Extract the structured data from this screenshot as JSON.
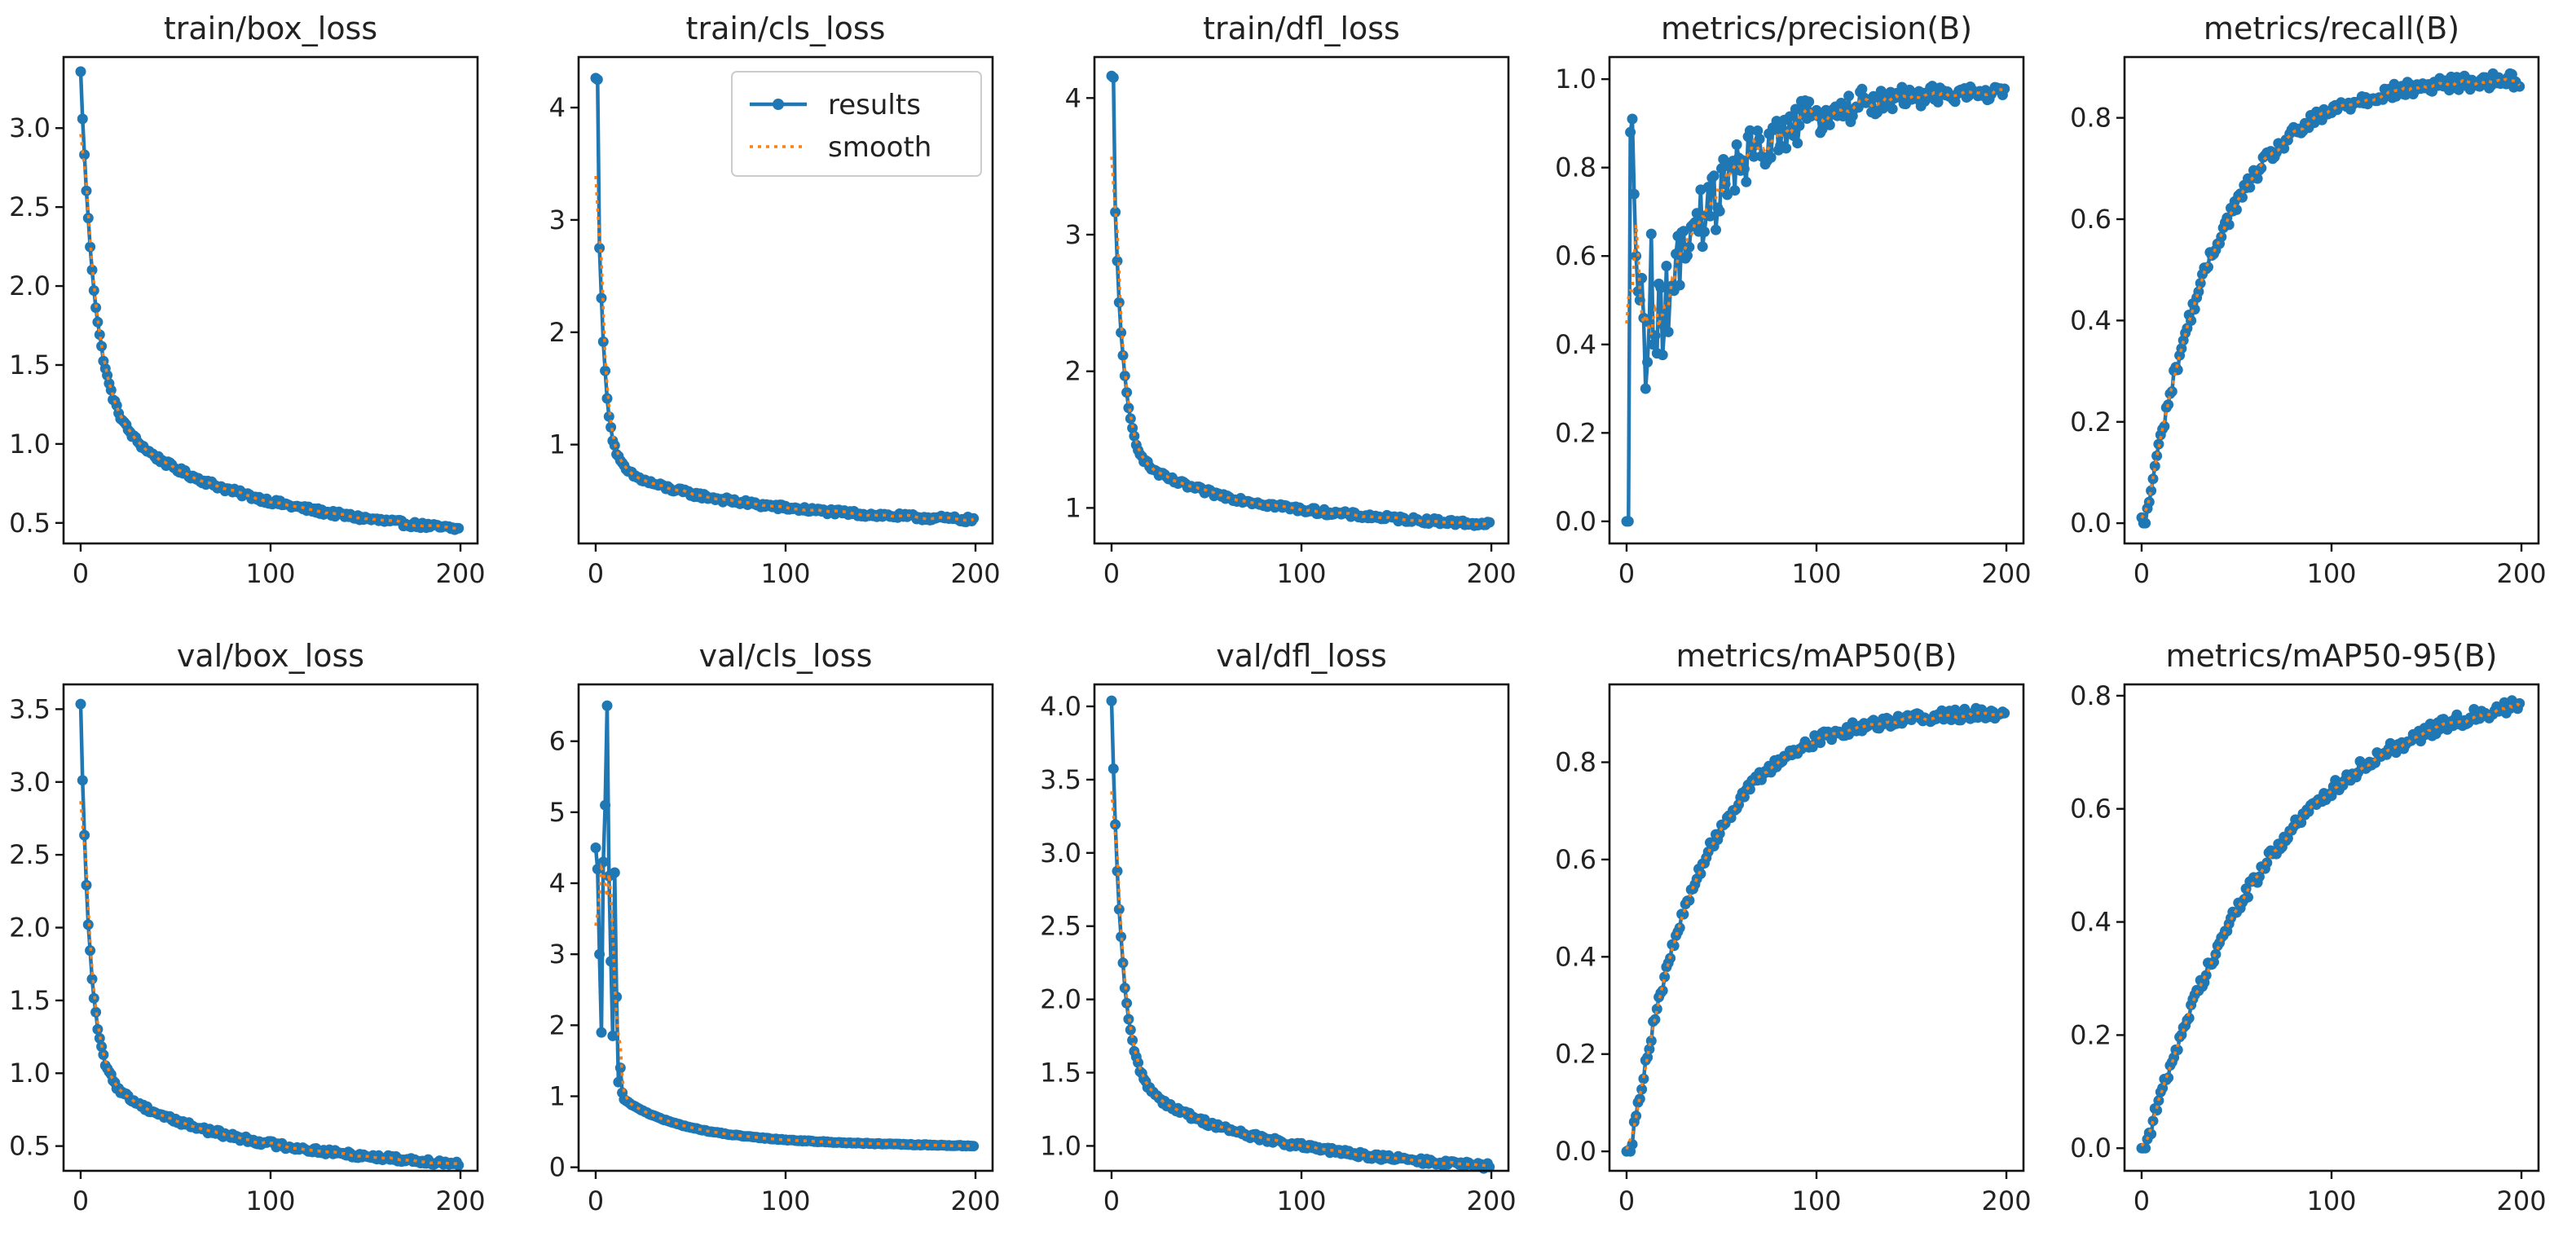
{
  "figure": {
    "x_ticks": [
      0,
      100,
      200
    ],
    "result_color": "#1f77b4",
    "smooth_color": "#ff7f0e"
  },
  "legend": {
    "results_label": "results",
    "smooth_label": "smooth"
  },
  "chart_data": [
    {
      "type": "line",
      "title": "train/box_loss",
      "xlim": [
        -9,
        209
      ],
      "ylim": [
        0.37,
        3.45
      ],
      "yticks": [
        0.5,
        1.0,
        1.5,
        2.0,
        2.5,
        3.0
      ],
      "ytick_labels": [
        "0.5",
        "1.0",
        "1.5",
        "2.0",
        "2.5",
        "3.0"
      ],
      "curve": {
        "kind": "decay",
        "start": 3.35,
        "end": 0.46,
        "k": 3.2,
        "w": 0.62,
        "tau": 7
      },
      "series": [
        {
          "name": "results",
          "x_range": [
            0,
            200
          ],
          "points": 200
        },
        {
          "name": "smooth",
          "style": "dotted"
        }
      ]
    },
    {
      "type": "line",
      "title": "train/cls_loss",
      "xlim": [
        -9,
        209
      ],
      "ylim": [
        0.12,
        4.45
      ],
      "yticks": [
        1,
        2,
        3,
        4
      ],
      "ytick_labels": [
        "1",
        "2",
        "3",
        "4"
      ],
      "curve": {
        "kind": "decay",
        "start": 4.25,
        "end": 0.33,
        "k": 3.2,
        "w": 0.82,
        "tau": 3.5,
        "spike": {
          "x": 1,
          "y": 4.25
        }
      },
      "series": [
        {
          "name": "results",
          "x_range": [
            0,
            200
          ],
          "points": 200
        },
        {
          "name": "smooth",
          "style": "dotted"
        }
      ]
    },
    {
      "type": "line",
      "title": "train/dfl_loss",
      "xlim": [
        -9,
        209
      ],
      "ylim": [
        0.74,
        4.3
      ],
      "yticks": [
        1,
        2,
        3,
        4
      ],
      "ytick_labels": [
        "1",
        "2",
        "3",
        "4"
      ],
      "curve": {
        "kind": "decay",
        "start": 4.15,
        "end": 0.88,
        "k": 3.3,
        "w": 0.78,
        "tau": 4.5,
        "spike": {
          "x": 1,
          "y": 4.15
        }
      },
      "series": [
        {
          "name": "results",
          "x_range": [
            0,
            200
          ],
          "points": 200
        },
        {
          "name": "smooth",
          "style": "dotted"
        }
      ]
    },
    {
      "type": "line",
      "title": "metrics/precision(B)",
      "xlim": [
        -9,
        209
      ],
      "ylim": [
        -0.05,
        1.05
      ],
      "yticks": [
        0.0,
        0.2,
        0.4,
        0.6,
        0.8,
        1.0
      ],
      "ytick_labels": [
        "0.0",
        "0.2",
        "0.4",
        "0.6",
        "0.8",
        "1.0"
      ],
      "curve": {
        "kind": "noisy_rise",
        "early_points": [
          [
            0,
            0.0
          ],
          [
            1,
            0.0
          ],
          [
            2,
            0.88
          ],
          [
            3,
            0.91
          ],
          [
            4,
            0.74
          ],
          [
            5,
            0.6
          ],
          [
            6,
            0.52
          ],
          [
            7,
            0.5
          ],
          [
            8,
            0.55
          ],
          [
            9,
            0.46
          ],
          [
            10,
            0.3
          ],
          [
            11,
            0.36
          ],
          [
            12,
            0.45
          ],
          [
            13,
            0.65
          ],
          [
            14,
            0.4
          ],
          [
            15,
            0.42
          ],
          [
            16,
            0.38
          ]
        ],
        "base": 0.42,
        "plateau": 0.975,
        "scale": 38,
        "noise": 0.1,
        "noise_decay": 90
      },
      "series": [
        {
          "name": "results",
          "x_range": [
            0,
            200
          ],
          "points": 200
        },
        {
          "name": "smooth",
          "style": "dotted"
        }
      ]
    },
    {
      "type": "line",
      "title": "metrics/recall(B)",
      "xlim": [
        -9,
        209
      ],
      "ylim": [
        -0.04,
        0.92
      ],
      "yticks": [
        0.0,
        0.2,
        0.4,
        0.6,
        0.8
      ],
      "ytick_labels": [
        "0.0",
        "0.2",
        "0.4",
        "0.6",
        "0.8"
      ],
      "curve": {
        "kind": "rise",
        "start": 0.0,
        "end": 0.88,
        "scale": 38,
        "delay": 2,
        "noise": 0.015
      },
      "series": [
        {
          "name": "results",
          "x_range": [
            0,
            200
          ],
          "points": 200
        },
        {
          "name": "smooth",
          "style": "dotted"
        }
      ]
    },
    {
      "type": "line",
      "title": "val/box_loss",
      "xlim": [
        -9,
        209
      ],
      "ylim": [
        0.33,
        3.67
      ],
      "yticks": [
        0.5,
        1.0,
        1.5,
        2.0,
        2.5,
        3.0,
        3.5
      ],
      "ytick_labels": [
        "0.5",
        "1.0",
        "1.5",
        "2.0",
        "2.5",
        "3.0",
        "3.5"
      ],
      "curve": {
        "kind": "decay",
        "start": 3.52,
        "end": 0.38,
        "k": 3.3,
        "w": 0.72,
        "tau": 4.5
      },
      "series": [
        {
          "name": "results",
          "x_range": [
            0,
            200
          ],
          "points": 200
        },
        {
          "name": "smooth",
          "style": "dotted"
        }
      ]
    },
    {
      "type": "line",
      "title": "val/cls_loss",
      "xlim": [
        -9,
        209
      ],
      "ylim": [
        -0.05,
        6.8
      ],
      "yticks": [
        0,
        1,
        2,
        3,
        4,
        5,
        6
      ],
      "ytick_labels": [
        "0",
        "1",
        "2",
        "3",
        "4",
        "5",
        "6"
      ],
      "curve": {
        "kind": "decay",
        "start": 1.3,
        "end": 0.3,
        "k": 1.0,
        "w": 0.7,
        "tau": 30,
        "early_points": [
          [
            0,
            4.5
          ],
          [
            1,
            4.2
          ],
          [
            2,
            3.0
          ],
          [
            3,
            1.9
          ],
          [
            4,
            4.3
          ],
          [
            5,
            5.1
          ],
          [
            6,
            6.5
          ],
          [
            7,
            4.1
          ],
          [
            8,
            2.9
          ],
          [
            9,
            1.85
          ],
          [
            10,
            4.15
          ],
          [
            11,
            2.4
          ],
          [
            12,
            1.2
          ],
          [
            13,
            1.4
          ],
          [
            14,
            1.05
          ]
        ]
      },
      "series": [
        {
          "name": "results",
          "x_range": [
            0,
            200
          ],
          "points": 200
        },
        {
          "name": "smooth",
          "style": "dotted"
        }
      ]
    },
    {
      "type": "line",
      "title": "val/dfl_loss",
      "xlim": [
        -9,
        209
      ],
      "ylim": [
        0.83,
        4.15
      ],
      "yticks": [
        1.0,
        1.5,
        2.0,
        2.5,
        3.0,
        3.5,
        4.0
      ],
      "ytick_labels": [
        "1.0",
        "1.5",
        "2.0",
        "2.5",
        "3.0",
        "3.5",
        "4.0"
      ],
      "curve": {
        "kind": "decay",
        "start": 4.02,
        "end": 0.86,
        "k": 3.2,
        "w": 0.72,
        "tau": 5
      },
      "series": [
        {
          "name": "results",
          "x_range": [
            0,
            200
          ],
          "points": 200
        },
        {
          "name": "smooth",
          "style": "dotted"
        }
      ]
    },
    {
      "type": "line",
      "title": "metrics/mAP50(B)",
      "xlim": [
        -9,
        209
      ],
      "ylim": [
        -0.04,
        0.96
      ],
      "yticks": [
        0.0,
        0.2,
        0.4,
        0.6,
        0.8
      ],
      "ytick_labels": [
        "0.0",
        "0.2",
        "0.4",
        "0.6",
        "0.8"
      ],
      "curve": {
        "kind": "rise",
        "start": 0.0,
        "end": 0.905,
        "scale": 36,
        "delay": 2,
        "noise": 0.012
      },
      "series": [
        {
          "name": "results",
          "x_range": [
            0,
            200
          ],
          "points": 200
        },
        {
          "name": "smooth",
          "style": "dotted"
        }
      ]
    },
    {
      "type": "line",
      "title": "metrics/mAP50-95(B)",
      "xlim": [
        -9,
        209
      ],
      "ylim": [
        -0.04,
        0.82
      ],
      "yticks": [
        0.0,
        0.2,
        0.4,
        0.6,
        0.8
      ],
      "ytick_labels": [
        "0.0",
        "0.2",
        "0.4",
        "0.6",
        "0.8"
      ],
      "curve": {
        "kind": "rise",
        "start": 0.0,
        "end": 0.83,
        "scale": 68,
        "delay": 2,
        "noise": 0.012
      },
      "series": [
        {
          "name": "results",
          "x_range": [
            0,
            200
          ],
          "points": 200
        },
        {
          "name": "smooth",
          "style": "dotted"
        }
      ]
    }
  ]
}
